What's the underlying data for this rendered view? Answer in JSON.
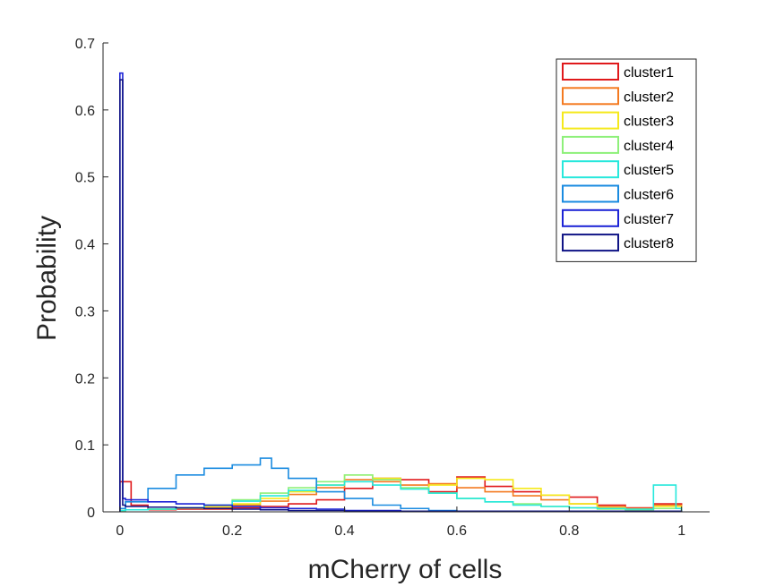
{
  "chart_data": {
    "type": "histogram-stairs",
    "title": "",
    "xlabel": "mCherry of cells",
    "ylabel": "Probability",
    "xlim": [
      -0.03,
      1.05
    ],
    "ylim": [
      0,
      0.7
    ],
    "xticks": [
      0,
      0.2,
      0.4,
      0.6,
      0.8,
      1
    ],
    "xtick_labels": [
      "0",
      "0.2",
      "0.4",
      "0.6",
      "0.8",
      "1"
    ],
    "yticks": [
      0,
      0.1,
      0.2,
      0.3,
      0.4,
      0.5,
      0.6,
      0.7
    ],
    "ytick_labels": [
      "0",
      "0.1",
      "0.2",
      "0.3",
      "0.4",
      "0.5",
      "0.6",
      "0.7"
    ],
    "grid": false,
    "legend_position": "top-right",
    "series": [
      {
        "name": "cluster1",
        "color": "#e0191b",
        "x": [
          0,
          0.01,
          0.02,
          0.05,
          0.1,
          0.15,
          0.2,
          0.25,
          0.3,
          0.35,
          0.4,
          0.45,
          0.5,
          0.55,
          0.6,
          0.65,
          0.7,
          0.75,
          0.8,
          0.85,
          0.9,
          0.95,
          1
        ],
        "values": [
          0.045,
          0.045,
          0.01,
          0.003,
          0.004,
          0.004,
          0.006,
          0.008,
          0.012,
          0.018,
          0.035,
          0.05,
          0.048,
          0.03,
          0.052,
          0.038,
          0.03,
          0.025,
          0.022,
          0.01,
          0.006,
          0.012
        ]
      },
      {
        "name": "cluster2",
        "color": "#f47a20",
        "x": [
          0,
          0.01,
          0.05,
          0.1,
          0.15,
          0.2,
          0.25,
          0.3,
          0.35,
          0.4,
          0.45,
          0.5,
          0.55,
          0.6,
          0.65,
          0.7,
          0.75,
          0.8,
          0.85,
          0.9,
          0.95,
          1
        ],
        "values": [
          0.002,
          0.003,
          0.004,
          0.005,
          0.006,
          0.01,
          0.016,
          0.026,
          0.036,
          0.048,
          0.045,
          0.04,
          0.042,
          0.036,
          0.03,
          0.024,
          0.018,
          0.012,
          0.008,
          0.005,
          0.01
        ]
      },
      {
        "name": "cluster3",
        "color": "#f5e91b",
        "x": [
          0,
          0.01,
          0.05,
          0.1,
          0.15,
          0.2,
          0.25,
          0.3,
          0.35,
          0.4,
          0.45,
          0.5,
          0.55,
          0.6,
          0.65,
          0.7,
          0.75,
          0.8,
          0.85,
          0.9,
          0.95,
          1
        ],
        "values": [
          0.002,
          0.003,
          0.004,
          0.006,
          0.008,
          0.012,
          0.02,
          0.03,
          0.04,
          0.055,
          0.05,
          0.035,
          0.04,
          0.05,
          0.048,
          0.035,
          0.025,
          0.012,
          0.006,
          0.004,
          0.008
        ]
      },
      {
        "name": "cluster4",
        "color": "#8ef07a",
        "x": [
          0,
          0.01,
          0.05,
          0.1,
          0.15,
          0.2,
          0.25,
          0.3,
          0.35,
          0.4,
          0.45,
          0.5,
          0.55,
          0.6,
          0.65,
          0.7,
          0.75,
          0.8,
          0.85,
          0.9,
          0.95,
          1
        ],
        "values": [
          0.002,
          0.003,
          0.004,
          0.006,
          0.01,
          0.018,
          0.028,
          0.036,
          0.045,
          0.055,
          0.048,
          0.036,
          0.028,
          0.02,
          0.015,
          0.012,
          0.008,
          0.006,
          0.004,
          0.003,
          0.005
        ]
      },
      {
        "name": "cluster5",
        "color": "#27e8dc",
        "x": [
          0,
          0.01,
          0.05,
          0.1,
          0.15,
          0.2,
          0.25,
          0.3,
          0.35,
          0.4,
          0.45,
          0.5,
          0.55,
          0.6,
          0.65,
          0.7,
          0.75,
          0.8,
          0.85,
          0.9,
          0.95,
          0.99,
          1
        ],
        "values": [
          0.002,
          0.003,
          0.004,
          0.006,
          0.01,
          0.016,
          0.024,
          0.032,
          0.04,
          0.045,
          0.04,
          0.034,
          0.028,
          0.02,
          0.015,
          0.01,
          0.008,
          0.006,
          0.005,
          0.004,
          0.04,
          0.005
        ]
      },
      {
        "name": "cluster6",
        "color": "#1a8be0",
        "x": [
          0,
          0.01,
          0.05,
          0.1,
          0.15,
          0.2,
          0.25,
          0.27,
          0.3,
          0.35,
          0.4,
          0.45,
          0.5,
          0.55,
          0.6,
          0.7,
          0.8,
          0.9,
          1
        ],
        "values": [
          0.005,
          0.015,
          0.035,
          0.055,
          0.065,
          0.07,
          0.08,
          0.065,
          0.05,
          0.03,
          0.02,
          0.01,
          0.005,
          0.002,
          0.001,
          0.001,
          0.001,
          0.001
        ]
      },
      {
        "name": "cluster7",
        "color": "#1c23d6",
        "x": [
          0,
          0.005,
          0.01,
          0.05,
          0.1,
          0.15,
          0.2,
          0.25,
          0.3,
          0.35,
          0.4,
          0.5,
          0.6,
          0.8,
          1
        ],
        "values": [
          0.655,
          0.02,
          0.018,
          0.015,
          0.012,
          0.01,
          0.008,
          0.006,
          0.005,
          0.004,
          0.002,
          0.001,
          0.001,
          0.001
        ]
      },
      {
        "name": "cluster8",
        "color": "#101486",
        "x": [
          0,
          0.005,
          0.01,
          0.05,
          0.1,
          0.15,
          0.2,
          0.25,
          0.3,
          0.4,
          0.6,
          0.8,
          1
        ],
        "values": [
          0.645,
          0.01,
          0.008,
          0.007,
          0.006,
          0.005,
          0.004,
          0.003,
          0.002,
          0.001,
          0.001,
          0.001
        ]
      }
    ]
  }
}
